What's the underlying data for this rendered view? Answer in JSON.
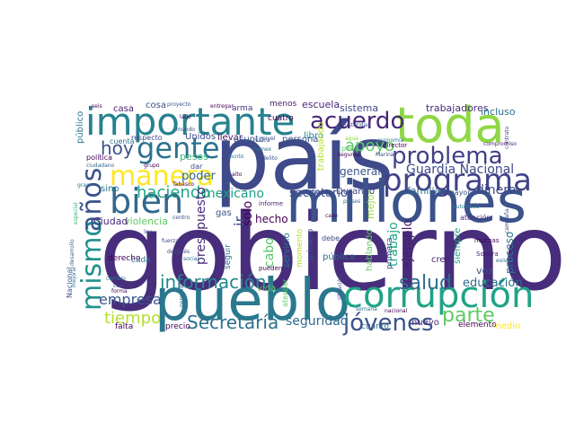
{
  "wordcloud": {
    "words": [
      {
        "text": "gobierno",
        "color": "#472d7b"
      },
      {
        "text": "país",
        "color": "#3e4a89"
      },
      {
        "text": "pueblo",
        "color": "#2a788e"
      },
      {
        "text": "millones",
        "color": "#3b528b"
      },
      {
        "text": "toda",
        "color": "#8fd744"
      },
      {
        "text": "importante",
        "color": "#26828e"
      },
      {
        "text": "corrupción",
        "color": "#20a386"
      },
      {
        "text": "bien",
        "color": "#31688e"
      },
      {
        "text": "programa",
        "color": "#404387"
      },
      {
        "text": "gente",
        "color": "#2c728e"
      },
      {
        "text": "manera",
        "color": "#fde725"
      },
      {
        "text": "mismo",
        "color": "#21918c"
      },
      {
        "text": "años",
        "color": "#3a548c"
      },
      {
        "text": "jóvenes",
        "color": "#3b528b"
      },
      {
        "text": "problema",
        "color": "#433e85"
      },
      {
        "text": "acuerdo",
        "color": "#482677"
      },
      {
        "text": "información",
        "color": "#23888e"
      },
      {
        "text": "Secretaría",
        "color": "#2d708e"
      },
      {
        "text": "parte",
        "color": "#5ec962"
      },
      {
        "text": "salud",
        "color": "#2e6e8e"
      },
      {
        "text": "haciendo",
        "color": "#21a685"
      },
      {
        "text": "hoy",
        "color": "#3b528b"
      },
      {
        "text": "tiempo",
        "color": "#b5de2b"
      },
      {
        "text": "apoyo",
        "color": "#5ec962"
      },
      {
        "text": "Guardia Nacional",
        "color": "#3e4a89"
      },
      {
        "text": "empresa",
        "color": "#39568c"
      },
      {
        "text": "mexicano",
        "color": "#1fa187"
      },
      {
        "text": "presupuesto",
        "color": "#472c7a"
      },
      {
        "text": "seguridad",
        "color": "#31688e"
      },
      {
        "text": "secretario",
        "color": "#3e4a89"
      },
      {
        "text": "solo",
        "color": "#440154"
      },
      {
        "text": "dinero",
        "color": "#3e4989"
      },
      {
        "text": "ejemplo",
        "color": "#481f70"
      },
      {
        "text": "trabajo",
        "color": "#22a884"
      },
      {
        "text": "educación",
        "color": "#2f6c8e"
      },
      {
        "text": "poder",
        "color": "#31688e"
      },
      {
        "text": "cabo",
        "color": "#56c667"
      },
      {
        "text": "general",
        "color": "#3a548c"
      },
      {
        "text": "hecho",
        "color": "#440154"
      },
      {
        "text": "violencia",
        "color": "#5ec962"
      },
      {
        "text": "Ciudad",
        "color": "#482878"
      },
      {
        "text": "familia",
        "color": "#306a8e"
      },
      {
        "text": "proceso",
        "color": "#2a788e"
      },
      {
        "text": "escuela",
        "color": "#482475"
      },
      {
        "text": "sistema",
        "color": "#3f4889"
      },
      {
        "text": "trabajadores",
        "color": "#472d7b"
      },
      {
        "text": "incluso",
        "color": "#2c728e"
      },
      {
        "text": "mejor",
        "color": "#9dd93b"
      },
      {
        "text": "ir",
        "color": "#3b528b"
      },
      {
        "text": "público",
        "color": "#2a788e"
      },
      {
        "text": "casa",
        "color": "#481b6d"
      },
      {
        "text": "cosa",
        "color": "#3a548c"
      },
      {
        "text": "menos",
        "color": "#481a6c"
      },
      {
        "text": "arma",
        "color": "#453781"
      },
      {
        "text": "persona",
        "color": "#3b528b"
      },
      {
        "text": "libro",
        "color": "#25848e"
      },
      {
        "text": "pesos",
        "color": "#35b779"
      },
      {
        "text": "Unidos",
        "color": "#3e4a89"
      },
      {
        "text": "llevar",
        "color": "#471063"
      },
      {
        "text": "asunto",
        "color": "#38588c"
      },
      {
        "text": "cuatro",
        "color": "#440154"
      },
      {
        "text": "sino",
        "color": "#2a788e"
      },
      {
        "text": "gas",
        "color": "#3b528b"
      },
      {
        "text": "derecho",
        "color": "#440154"
      },
      {
        "text": "cada",
        "color": "#2c728e"
      },
      {
        "text": "Durango",
        "color": "#3e4a89"
      },
      {
        "text": "primero",
        "color": "#3b528b"
      },
      {
        "text": "siempre",
        "color": "#20a386"
      },
      {
        "text": "pública",
        "color": "#306a8e"
      },
      {
        "text": "hablando",
        "color": "#5ec962"
      },
      {
        "text": "primera",
        "color": "#3e4989"
      },
      {
        "text": "creo",
        "color": "#481f70"
      },
      {
        "text": "nuevo",
        "color": "#472d7b"
      },
      {
        "text": "elemento",
        "color": "#440154"
      },
      {
        "text": "medio",
        "color": "#fde725"
      },
      {
        "text": "vez",
        "color": "#3b528b"
      },
      {
        "text": "cuánto",
        "color": "#31688e"
      },
      {
        "text": "falta",
        "color": "#440154"
      },
      {
        "text": "precio",
        "color": "#440154"
      },
      {
        "text": "servicio",
        "color": "#2a788e"
      },
      {
        "text": "momento",
        "color": "#b5de2b"
      },
      {
        "text": "seguir",
        "color": "#2d708e"
      },
      {
        "text": "mayor",
        "color": "#3b528b"
      },
      {
        "text": "atención",
        "color": "#472d7b"
      },
      {
        "text": "Sonora",
        "color": "#481b6d"
      },
      {
        "text": "muchas",
        "color": "#440154"
      },
      {
        "text": "debe",
        "color": "#3e4a89"
      },
      {
        "text": "pueden",
        "color": "#440154"
      },
      {
        "text": "informe",
        "color": "#482475"
      },
      {
        "text": "Nacional",
        "color": "#3b528b"
      },
      {
        "text": "dar",
        "color": "#3e4a89"
      },
      {
        "text": "cuenta",
        "color": "#2c728e"
      },
      {
        "text": "política",
        "color": "#440154"
      },
      {
        "text": "ciudadano",
        "color": "#31688e"
      },
      {
        "text": "gran",
        "color": "#2a788e"
      },
      {
        "text": "respecto",
        "color": "#3e4a89"
      },
      {
        "text": "grupo",
        "color": "#440154"
      },
      {
        "text": "nivel",
        "color": "#3e4a89"
      },
      {
        "text": "punto",
        "color": "#2c728e"
      },
      {
        "text": "trabajando",
        "color": "#b5de2b"
      },
      {
        "text": "segundo",
        "color": "#440154"
      },
      {
        "text": "Marina",
        "color": "#3e4a89"
      },
      {
        "text": "agua",
        "color": "#8fd744"
      },
      {
        "text": "peso",
        "color": "#5ec962"
      },
      {
        "text": "austeridad",
        "color": "#3b528b"
      },
      {
        "text": "economía",
        "color": "#2a788e"
      },
      {
        "text": "director",
        "color": "#440154"
      },
      {
        "text": "compromiso",
        "color": "#481b6d"
      },
      {
        "text": "contrato",
        "color": "#3e4a89"
      },
      {
        "text": "entregar",
        "color": "#440154"
      },
      {
        "text": "proyecto",
        "color": "#3b528b"
      },
      {
        "text": "seis",
        "color": "#440154"
      },
      {
        "text": "lado",
        "color": "#440154"
      },
      {
        "text": "mundo",
        "color": "#3e4a89"
      },
      {
        "text": "alto",
        "color": "#440154"
      },
      {
        "text": "nunca",
        "color": "#3b528b"
      },
      {
        "text": "Tabasco",
        "color": "#440154"
      },
      {
        "text": "centro",
        "color": "#3e4a89"
      },
      {
        "text": "existe",
        "color": "#2c728e"
      },
      {
        "text": "campaña",
        "color": "#3e4a89"
      },
      {
        "text": "después",
        "color": "#3b528b"
      },
      {
        "text": "social",
        "color": "#31688e"
      },
      {
        "text": "forma",
        "color": "#440154"
      },
      {
        "text": "cual",
        "color": "#3e4a89"
      },
      {
        "text": "cambio",
        "color": "#2a788e"
      },
      {
        "text": "desarrollo",
        "color": "#31688e"
      },
      {
        "text": "especial",
        "color": "#35b779"
      },
      {
        "text": "mejorar",
        "color": "#2a788e"
      },
      {
        "text": "atender",
        "color": "#5ec962"
      },
      {
        "text": "situación",
        "color": "#3e4a89"
      },
      {
        "text": "semana",
        "color": "#2c728e"
      },
      {
        "text": "informar",
        "color": "#3e4a89"
      },
      {
        "text": "países",
        "color": "#31688e"
      },
      {
        "text": "autoridad",
        "color": "#2a788e"
      },
      {
        "text": "caso",
        "color": "#440154"
      },
      {
        "text": "delito",
        "color": "#3b528b"
      },
      {
        "text": "fuerza",
        "color": "#3e4a89"
      },
      {
        "text": "Pemex",
        "color": "#2c728e"
      },
      {
        "text": "vida",
        "color": "#5ec962"
      },
      {
        "text": "personal",
        "color": "#31688e"
      },
      {
        "text": "ley",
        "color": "#3b528b"
      },
      {
        "text": "nacional",
        "color": "#440154"
      }
    ]
  }
}
